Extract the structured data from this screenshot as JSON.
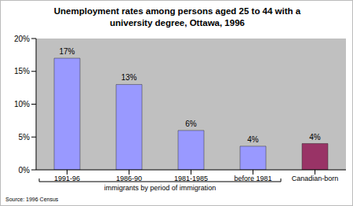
{
  "chart_data": {
    "type": "bar",
    "title": "Unemployment rates among persons aged 25 to 44 with a university degree, Ottawa, 1996",
    "categories": [
      "1991-96",
      "1986-90",
      "1981-1985",
      "before 1981",
      "Canadian-born"
    ],
    "values": [
      17,
      13,
      6,
      3.6,
      4
    ],
    "value_labels": [
      "17%",
      "13%",
      "6%",
      "4%",
      "4%"
    ],
    "data_labels": true,
    "colors": [
      "#9999ff",
      "#9999ff",
      "#9999ff",
      "#9999ff",
      "#993366"
    ],
    "ylim": [
      0,
      20
    ],
    "yticks": [
      {
        "value": 0,
        "label": "0%"
      },
      {
        "value": 5,
        "label": "5%"
      },
      {
        "value": 10,
        "label": "10%"
      },
      {
        "value": 15,
        "label": "15%"
      },
      {
        "value": 20,
        "label": "20%"
      }
    ],
    "grid": false,
    "annotations": [
      "immigrants by period of immigration",
      "Source: 1996 Census"
    ]
  }
}
